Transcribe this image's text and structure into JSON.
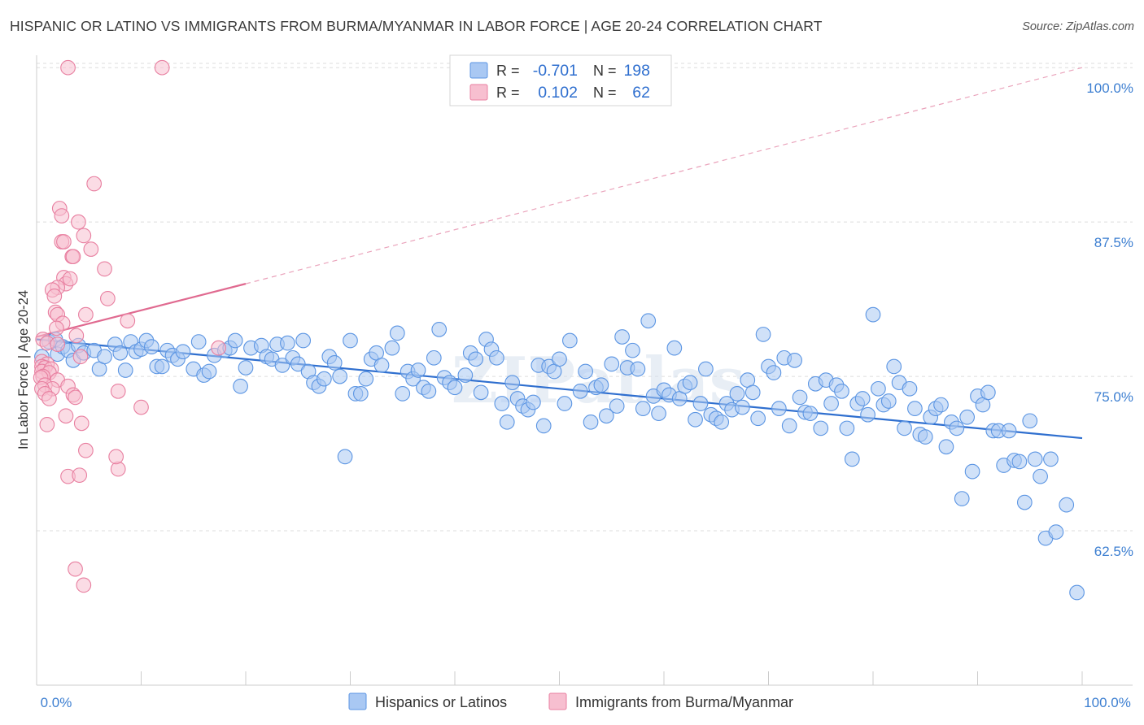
{
  "title": "HISPANIC OR LATINO VS IMMIGRANTS FROM BURMA/MYANMAR IN LABOR FORCE | AGE 20-24 CORRELATION CHART",
  "source": "Source: ZipAtlas.com",
  "watermark": "ZIPatlas",
  "chart_data": {
    "type": "scatter",
    "title": "HISPANIC OR LATINO VS IMMIGRANTS FROM BURMA/MYANMAR IN LABOR FORCE | AGE 20-24 CORRELATION CHART",
    "xlabel": "",
    "ylabel": "In Labor Force | Age 20-24",
    "xlim": [
      0,
      100
    ],
    "ylim": [
      50.0,
      101.0
    ],
    "x_tick_labels": [
      {
        "value": 0,
        "label": "0.0%"
      },
      {
        "value": 100,
        "label": "100.0%"
      }
    ],
    "x_minor_ticks": [
      0,
      10,
      20,
      30,
      40,
      50,
      60,
      70,
      80,
      90,
      100
    ],
    "y_ticks": [
      {
        "value": 62.5,
        "label": "62.5%"
      },
      {
        "value": 75.0,
        "label": "75.0%"
      },
      {
        "value": 87.5,
        "label": "87.5%"
      },
      {
        "value": 100.0,
        "label": "100.0%"
      }
    ],
    "grid": true,
    "legend_position": "top-center",
    "series": [
      {
        "name": "Hispanics or Latinos",
        "color": "#5b95e3",
        "fill": "#a9c8f3",
        "R": "-0.701",
        "N": "198",
        "trend": {
          "x": [
            0,
            100
          ],
          "y": [
            78.0,
            70.0
          ],
          "style": "solid"
        },
        "points": [
          [
            0.5,
            76.6
          ],
          [
            1.2,
            77.8
          ],
          [
            1.8,
            78.0
          ],
          [
            2.0,
            76.8
          ],
          [
            2.5,
            77.4
          ],
          [
            3.0,
            77.1
          ],
          [
            3.5,
            76.3
          ],
          [
            4.0,
            77.5
          ],
          [
            4.5,
            76.9
          ],
          [
            5.5,
            77.1
          ],
          [
            6.0,
            75.6
          ],
          [
            6.5,
            76.6
          ],
          [
            7.5,
            77.6
          ],
          [
            8.0,
            76.9
          ],
          [
            8.5,
            75.5
          ],
          [
            9.0,
            77.8
          ],
          [
            9.5,
            77.0
          ],
          [
            10.0,
            77.2
          ],
          [
            10.5,
            77.9
          ],
          [
            11.0,
            77.4
          ],
          [
            11.5,
            75.8
          ],
          [
            12.0,
            75.8
          ],
          [
            12.5,
            77.1
          ],
          [
            13.0,
            76.7
          ],
          [
            13.5,
            76.4
          ],
          [
            14.0,
            77.0
          ],
          [
            15.0,
            75.6
          ],
          [
            15.5,
            77.8
          ],
          [
            16.0,
            75.1
          ],
          [
            16.5,
            75.4
          ],
          [
            17.0,
            76.7
          ],
          [
            18.0,
            77.1
          ],
          [
            18.5,
            77.3
          ],
          [
            19.0,
            77.9
          ],
          [
            19.5,
            74.2
          ],
          [
            20.0,
            75.7
          ],
          [
            20.5,
            77.3
          ],
          [
            21.5,
            77.5
          ],
          [
            22.0,
            76.6
          ],
          [
            22.5,
            76.4
          ],
          [
            23.0,
            77.6
          ],
          [
            23.5,
            75.9
          ],
          [
            24.0,
            77.7
          ],
          [
            24.5,
            76.5
          ],
          [
            25.0,
            76.0
          ],
          [
            25.5,
            77.9
          ],
          [
            26.0,
            75.4
          ],
          [
            26.5,
            74.5
          ],
          [
            27.0,
            74.2
          ],
          [
            27.5,
            74.8
          ],
          [
            28.0,
            76.6
          ],
          [
            28.5,
            76.1
          ],
          [
            29.0,
            75.0
          ],
          [
            29.5,
            68.5
          ],
          [
            30.0,
            77.9
          ],
          [
            30.5,
            73.6
          ],
          [
            31.0,
            73.6
          ],
          [
            31.5,
            74.8
          ],
          [
            32.0,
            76.4
          ],
          [
            32.5,
            76.9
          ],
          [
            33.0,
            75.9
          ],
          [
            34.0,
            77.3
          ],
          [
            34.5,
            78.5
          ],
          [
            35.0,
            73.6
          ],
          [
            35.5,
            75.4
          ],
          [
            36.0,
            74.8
          ],
          [
            36.5,
            75.5
          ],
          [
            37.0,
            74.1
          ],
          [
            37.5,
            73.8
          ],
          [
            38.0,
            76.5
          ],
          [
            38.5,
            78.8
          ],
          [
            39.0,
            74.9
          ],
          [
            39.5,
            74.5
          ],
          [
            40.0,
            74.1
          ],
          [
            41.0,
            75.1
          ],
          [
            41.5,
            76.9
          ],
          [
            42.0,
            76.4
          ],
          [
            42.5,
            73.7
          ],
          [
            43.0,
            78.0
          ],
          [
            43.5,
            77.2
          ],
          [
            44.0,
            76.5
          ],
          [
            44.5,
            72.8
          ],
          [
            45.0,
            71.3
          ],
          [
            45.5,
            74.5
          ],
          [
            46.0,
            73.2
          ],
          [
            46.5,
            72.6
          ],
          [
            47.0,
            72.3
          ],
          [
            47.5,
            72.9
          ],
          [
            48.0,
            75.9
          ],
          [
            48.5,
            71.0
          ],
          [
            49.0,
            75.8
          ],
          [
            49.5,
            75.4
          ],
          [
            50.0,
            76.4
          ],
          [
            50.5,
            72.8
          ],
          [
            51.0,
            77.9
          ],
          [
            52.0,
            73.8
          ],
          [
            52.5,
            75.4
          ],
          [
            53.0,
            71.3
          ],
          [
            53.5,
            74.1
          ],
          [
            54.0,
            74.3
          ],
          [
            54.5,
            71.8
          ],
          [
            55.0,
            76.0
          ],
          [
            55.5,
            72.6
          ],
          [
            56.0,
            78.2
          ],
          [
            56.5,
            75.7
          ],
          [
            57.0,
            77.1
          ],
          [
            57.5,
            75.6
          ],
          [
            58.0,
            72.4
          ],
          [
            58.5,
            79.5
          ],
          [
            59.0,
            73.4
          ],
          [
            59.5,
            72.0
          ],
          [
            60.0,
            73.9
          ],
          [
            60.5,
            73.5
          ],
          [
            61.0,
            77.3
          ],
          [
            61.5,
            73.2
          ],
          [
            62.0,
            74.2
          ],
          [
            62.5,
            74.5
          ],
          [
            63.0,
            71.5
          ],
          [
            63.5,
            72.8
          ],
          [
            64.0,
            75.6
          ],
          [
            64.5,
            71.9
          ],
          [
            65.0,
            71.6
          ],
          [
            65.5,
            71.3
          ],
          [
            66.0,
            72.8
          ],
          [
            66.5,
            72.3
          ],
          [
            67.0,
            73.6
          ],
          [
            67.5,
            72.5
          ],
          [
            68.0,
            74.7
          ],
          [
            68.5,
            73.7
          ],
          [
            69.0,
            71.6
          ],
          [
            69.5,
            78.4
          ],
          [
            70.0,
            75.8
          ],
          [
            70.5,
            75.3
          ],
          [
            71.0,
            72.4
          ],
          [
            71.5,
            76.5
          ],
          [
            72.0,
            71.0
          ],
          [
            72.5,
            76.3
          ],
          [
            73.0,
            73.3
          ],
          [
            73.5,
            72.1
          ],
          [
            74.0,
            72.0
          ],
          [
            74.5,
            74.4
          ],
          [
            75.0,
            70.8
          ],
          [
            75.5,
            74.7
          ],
          [
            76.0,
            72.8
          ],
          [
            76.5,
            74.3
          ],
          [
            77.0,
            73.8
          ],
          [
            77.5,
            70.8
          ],
          [
            78.0,
            68.3
          ],
          [
            78.5,
            72.8
          ],
          [
            79.0,
            73.2
          ],
          [
            79.5,
            71.9
          ],
          [
            80.0,
            80.0
          ],
          [
            80.5,
            74.0
          ],
          [
            81.0,
            72.7
          ],
          [
            81.5,
            73.0
          ],
          [
            82.0,
            75.8
          ],
          [
            82.5,
            74.5
          ],
          [
            83.0,
            70.8
          ],
          [
            83.5,
            74.0
          ],
          [
            84.0,
            72.4
          ],
          [
            84.5,
            70.3
          ],
          [
            85.0,
            70.1
          ],
          [
            85.5,
            71.7
          ],
          [
            86.0,
            72.4
          ],
          [
            86.5,
            72.7
          ],
          [
            87.0,
            69.3
          ],
          [
            87.5,
            71.3
          ],
          [
            88.0,
            70.8
          ],
          [
            88.5,
            65.1
          ],
          [
            89.0,
            71.7
          ],
          [
            89.5,
            67.3
          ],
          [
            90.0,
            73.4
          ],
          [
            90.5,
            72.7
          ],
          [
            91.0,
            73.7
          ],
          [
            91.5,
            70.6
          ],
          [
            92.0,
            70.6
          ],
          [
            92.5,
            67.8
          ],
          [
            93.0,
            70.6
          ],
          [
            93.5,
            68.2
          ],
          [
            94.0,
            68.1
          ],
          [
            94.5,
            64.8
          ],
          [
            95.0,
            71.4
          ],
          [
            95.5,
            68.3
          ],
          [
            96.0,
            66.9
          ],
          [
            96.5,
            61.9
          ],
          [
            97.0,
            68.3
          ],
          [
            97.5,
            62.4
          ],
          [
            98.5,
            64.6
          ],
          [
            99.5,
            57.5
          ]
        ]
      },
      {
        "name": "Immigrants from Burma/Myanmar",
        "color": "#e87fa0",
        "fill": "#f7bfd0",
        "R": "0.102",
        "N": "62",
        "trend": {
          "x": [
            0,
            20
          ],
          "y": [
            78.2,
            82.5
          ],
          "style": "solid"
        },
        "trend_dashed": {
          "x": [
            20,
            100
          ],
          "y": [
            82.5,
            100.0
          ],
          "style": "dashed"
        },
        "points": [
          [
            3.0,
            100.0
          ],
          [
            12.0,
            100.0
          ],
          [
            5.5,
            90.6
          ],
          [
            2.2,
            88.6
          ],
          [
            2.4,
            88.0
          ],
          [
            4.0,
            87.5
          ],
          [
            4.5,
            86.4
          ],
          [
            2.4,
            85.9
          ],
          [
            2.6,
            85.9
          ],
          [
            3.4,
            84.7
          ],
          [
            3.5,
            84.7
          ],
          [
            5.2,
            85.3
          ],
          [
            6.5,
            83.7
          ],
          [
            2.6,
            83.0
          ],
          [
            2.8,
            82.5
          ],
          [
            3.2,
            82.9
          ],
          [
            2.0,
            82.2
          ],
          [
            1.5,
            82.0
          ],
          [
            1.7,
            81.5
          ],
          [
            6.8,
            81.3
          ],
          [
            1.8,
            80.2
          ],
          [
            2.0,
            80.0
          ],
          [
            4.7,
            80.0
          ],
          [
            8.7,
            79.5
          ],
          [
            2.5,
            79.3
          ],
          [
            1.9,
            78.9
          ],
          [
            3.8,
            78.3
          ],
          [
            0.6,
            78.0
          ],
          [
            1.0,
            77.7
          ],
          [
            4.2,
            76.6
          ],
          [
            0.5,
            76.2
          ],
          [
            1.0,
            76.0
          ],
          [
            2.0,
            77.6
          ],
          [
            0.5,
            75.8
          ],
          [
            0.8,
            75.7
          ],
          [
            0.5,
            75.4
          ],
          [
            1.4,
            75.6
          ],
          [
            1.2,
            75.3
          ],
          [
            0.6,
            75.0
          ],
          [
            0.4,
            74.9
          ],
          [
            2.0,
            74.7
          ],
          [
            0.8,
            74.3
          ],
          [
            1.5,
            74.0
          ],
          [
            3.0,
            74.2
          ],
          [
            0.5,
            74.0
          ],
          [
            0.8,
            73.6
          ],
          [
            3.5,
            73.5
          ],
          [
            3.7,
            73.3
          ],
          [
            7.8,
            73.8
          ],
          [
            10.0,
            72.5
          ],
          [
            1.0,
            71.1
          ],
          [
            2.8,
            71.8
          ],
          [
            4.3,
            71.2
          ],
          [
            4.7,
            69.0
          ],
          [
            7.8,
            67.5
          ],
          [
            3.0,
            66.9
          ],
          [
            4.1,
            67.0
          ],
          [
            3.7,
            59.4
          ],
          [
            4.5,
            58.1
          ],
          [
            17.4,
            77.3
          ],
          [
            7.6,
            68.5
          ],
          [
            1.2,
            73.2
          ]
        ]
      }
    ]
  },
  "legend": {
    "r_label": "R =",
    "n_label": "N =",
    "entries": [
      {
        "r": "-0.701",
        "n": "198"
      },
      {
        "r": "0.102",
        "n": "62"
      }
    ]
  },
  "bottom_legend": [
    "Hispanics or Latinos",
    "Immigrants from Burma/Myanmar"
  ],
  "colors": {
    "blue": "#3d7fd1",
    "blue_fill": "#a9c8f3",
    "pink": "#e87fa0",
    "pink_fill": "#f7bfd0",
    "grid": "#dddddd"
  }
}
